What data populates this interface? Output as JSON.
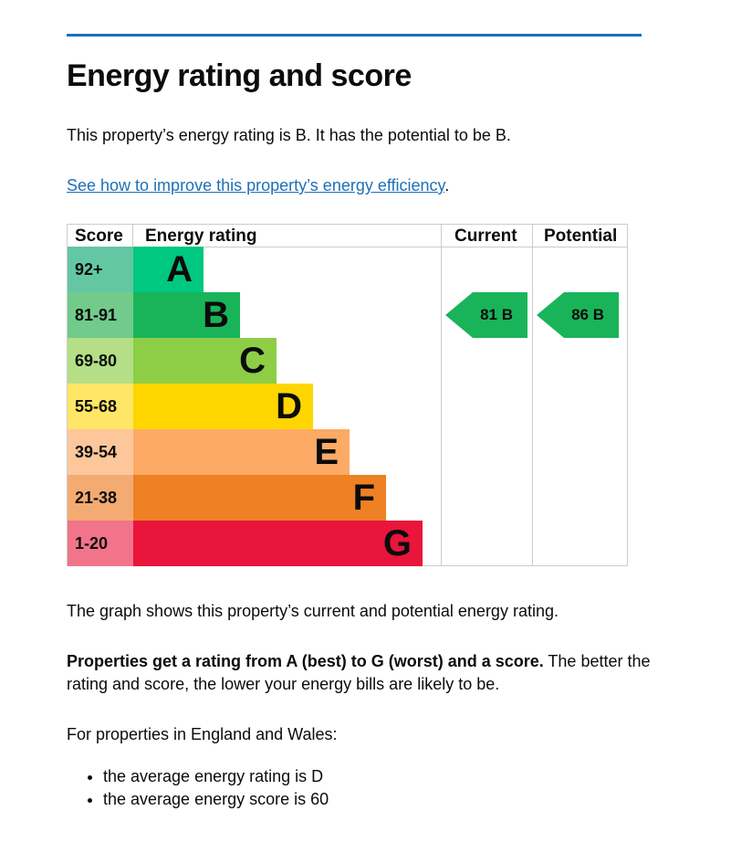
{
  "title": "Energy rating and score",
  "intro": "This property’s energy rating is B. It has the potential to be B.",
  "link": "See how to improve this property’s energy efficiency",
  "link_suffix": ".",
  "table": {
    "headers": {
      "score": "Score",
      "rating": "Energy rating",
      "current": "Current",
      "potential": "Potential"
    },
    "bands": [
      {
        "score": "92+",
        "letter": "A",
        "color": "#00c781",
        "light": "#64c7a4"
      },
      {
        "score": "81-91",
        "letter": "B",
        "color": "#19b459",
        "light": "#72ca8b"
      },
      {
        "score": "69-80",
        "letter": "C",
        "color": "#8dce46",
        "light": "#b4df86"
      },
      {
        "score": "55-68",
        "letter": "D",
        "color": "#ffd500",
        "light": "#ffe666"
      },
      {
        "score": "39-54",
        "letter": "E",
        "color": "#fcaa65",
        "light": "#fdc79b"
      },
      {
        "score": "21-38",
        "letter": "F",
        "color": "#ef8023",
        "light": "#f4ab71"
      },
      {
        "score": "1-20",
        "letter": "G",
        "color": "#e9153b",
        "light": "#f2748a"
      }
    ],
    "current": {
      "label": "81  B",
      "band_index": 1
    },
    "potential": {
      "label": "86  B",
      "band_index": 1
    }
  },
  "graph_text": "The graph shows this property’s current and potential energy rating.",
  "bold_text": "Properties get a rating from A (best) to G (worst) and a score.",
  "rest_text": " The better the rating and score, the lower your energy bills are likely to be.",
  "region_text": "For properties in England and Wales:",
  "bullets": [
    "the average energy rating is D",
    "the average energy score is 60"
  ]
}
